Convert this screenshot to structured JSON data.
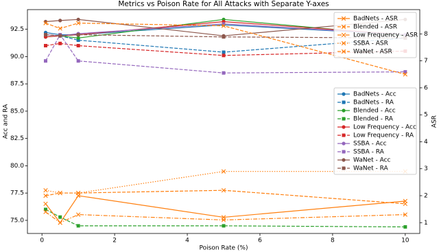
{
  "chart_data": {
    "type": "line",
    "title": "Metrics vs Poison Rate for All Attacks with Separate Y-axes",
    "xlabel": "Poison Rate (%)",
    "ylabel": "Acc and RA",
    "ylabel_color": "#1f77b4",
    "y2label": "ASR",
    "y2label_color": "#ff7f0e",
    "x": [
      0.1,
      0.5,
      1,
      5,
      10
    ],
    "xlim": [
      -0.4,
      10.4
    ],
    "xticks": [
      0,
      2,
      4,
      6,
      8,
      10
    ],
    "ylim": [
      73.8,
      94.3
    ],
    "yticks": [
      {
        "value": 75,
        "label": "75.0"
      },
      77.5,
      {
        "value": 80,
        "label": "80.0"
      },
      82.5,
      {
        "value": 85,
        "label": "85.0"
      },
      87.5,
      {
        "value": 90,
        "label": "90.0"
      },
      92.5
    ],
    "y2lim": [
      0.6,
      8.9
    ],
    "y2ticks": [
      1,
      2,
      3,
      4,
      5,
      6,
      7,
      8
    ],
    "grid": false,
    "legend": "center right",
    "y2_legend": "upper right",
    "series": [
      {
        "name": "BadNets - Acc",
        "color": "#1f77b4",
        "linestyle": "solid",
        "marker": "o",
        "values": [
          92.2,
          92.0,
          92.0,
          92.9,
          92.0
        ]
      },
      {
        "name": "BadNets - RA",
        "color": "#1f77b4",
        "linestyle": "dashed",
        "marker": "s",
        "values": [
          92.0,
          91.9,
          91.5,
          90.4,
          91.7
        ]
      },
      {
        "name": "Blended - Acc",
        "color": "#2ca02c",
        "linestyle": "solid",
        "marker": "o",
        "values": [
          91.8,
          91.9,
          91.7,
          93.4,
          91.9
        ]
      },
      {
        "name": "Blended - RA",
        "color": "#2ca02c",
        "linestyle": "dashed",
        "marker": "s",
        "values": [
          76.0,
          75.3,
          74.5,
          74.5,
          74.4
        ]
      },
      {
        "name": "Low Frequency - Acc",
        "color": "#d62728",
        "linestyle": "solid",
        "marker": "o",
        "values": [
          91.8,
          91.9,
          92.0,
          93.2,
          92.0
        ]
      },
      {
        "name": "Low Frequency - RA",
        "color": "#d62728",
        "linestyle": "dashed",
        "marker": "s",
        "values": [
          91.0,
          91.2,
          91.0,
          90.1,
          90.5
        ]
      },
      {
        "name": "SSBA - Acc",
        "color": "#9467bd",
        "linestyle": "solid",
        "marker": "o",
        "values": [
          92.0,
          91.9,
          92.1,
          93.0,
          92.0
        ]
      },
      {
        "name": "SSBA - RA",
        "color": "#9467bd",
        "linestyle": "dashed",
        "marker": "s",
        "values": [
          89.6,
          92.0,
          89.6,
          88.5,
          88.6
        ]
      },
      {
        "name": "WaNet - Acc",
        "color": "#8c564b",
        "linestyle": "solid",
        "marker": "o",
        "values": [
          93.2,
          93.3,
          93.4,
          91.9,
          93.4
        ]
      },
      {
        "name": "WaNet - RA",
        "color": "#8c564b",
        "linestyle": "dashed",
        "marker": "s",
        "values": [
          92.0,
          91.9,
          92.0,
          91.8,
          91.7
        ]
      },
      {
        "name": "BadNets - ASR",
        "color": "#ff7f0e",
        "linestyle": "solid",
        "marker": "x",
        "axis": "y2",
        "values": [
          1.7,
          1.0,
          2.0,
          1.2,
          1.8
        ]
      },
      {
        "name": "Blended - ASR",
        "color": "#ff7f0e",
        "linestyle": "dashed",
        "marker": "x",
        "axis": "y2",
        "values": [
          8.4,
          8.2,
          8.4,
          8.3,
          6.5
        ]
      },
      {
        "name": "Low Frequency - ASR",
        "color": "#ff7f0e",
        "linestyle": "dashdot",
        "marker": "x",
        "axis": "y2",
        "values": [
          1.4,
          1.0,
          1.3,
          1.1,
          1.3
        ]
      },
      {
        "name": "SSBA - ASR",
        "color": "#ff7f0e",
        "linestyle": "dotted",
        "marker": "x",
        "axis": "y2",
        "values": [
          2.2,
          2.1,
          2.1,
          2.9,
          2.9
        ]
      },
      {
        "name": "WaNet - ASR",
        "color": "#ff7f0e",
        "linestyle": "dashed",
        "marker": "x",
        "axis": "y2",
        "values": [
          2.0,
          2.1,
          2.1,
          2.2,
          1.7
        ]
      }
    ]
  }
}
